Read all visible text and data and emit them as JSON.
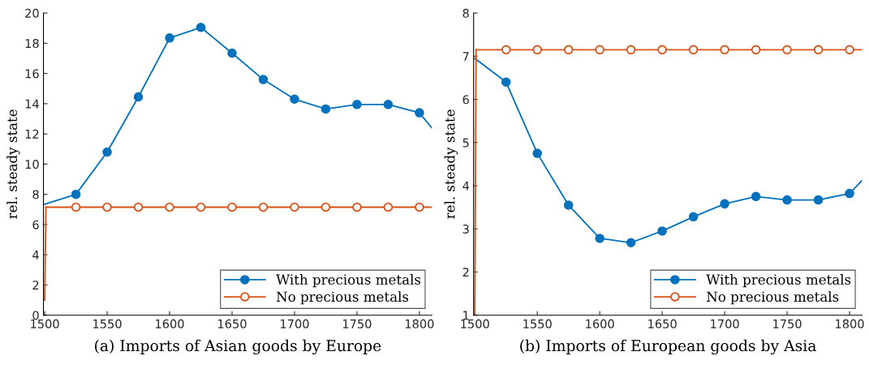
{
  "chart_data": [
    {
      "type": "line",
      "subtitle": "(a) Imports of Asian goods by Europe",
      "ylabel": "rel. steady state",
      "xlim": [
        1499,
        1810
      ],
      "xticks": [
        1500,
        1550,
        1600,
        1650,
        1700,
        1750,
        1800
      ],
      "ylim": [
        0,
        20
      ],
      "yticks": [
        0,
        2,
        4,
        6,
        8,
        10,
        12,
        14,
        16,
        18,
        20
      ],
      "grid": false,
      "legend": "bottom right",
      "series": [
        {
          "name": "With precious metals",
          "color": "#0072bd",
          "marker": "circle",
          "x": [
            1500,
            1525,
            1550,
            1575,
            1600,
            1625,
            1650,
            1675,
            1700,
            1725,
            1750,
            1775,
            1800,
            1810
          ],
          "values": [
            7.35,
            8.0,
            10.8,
            14.45,
            18.35,
            19.05,
            17.35,
            15.6,
            14.3,
            13.65,
            13.95,
            13.95,
            13.4,
            12.4
          ]
        },
        {
          "name": "No precious metals",
          "color": "#d95319",
          "marker": "circle",
          "x": [
            1501,
            1525,
            1550,
            1575,
            1600,
            1625,
            1650,
            1675,
            1700,
            1725,
            1750,
            1775,
            1800,
            1810
          ],
          "values": [
            7.15,
            7.15,
            7.15,
            7.15,
            7.15,
            7.15,
            7.15,
            7.15,
            7.15,
            7.15,
            7.15,
            7.15,
            7.15,
            7.15
          ]
        },
        {
          "color": "#d95319",
          "marker": "none",
          "x": [
            1500,
            1501
          ],
          "values": [
            1.0,
            7.15
          ]
        }
      ]
    },
    {
      "type": "line",
      "subtitle": "(b) Imports of European goods by Asia",
      "ylabel": "rel. steady state",
      "xlim": [
        1499,
        1810
      ],
      "xticks": [
        1500,
        1550,
        1600,
        1650,
        1700,
        1750,
        1800
      ],
      "ylim": [
        1,
        8
      ],
      "yticks": [
        1,
        2,
        3,
        4,
        5,
        6,
        7,
        8
      ],
      "grid": false,
      "legend": "bottom right",
      "series": [
        {
          "name": "With precious metals",
          "color": "#0072bd",
          "marker": "circle",
          "x": [
            1500,
            1525,
            1550,
            1575,
            1600,
            1625,
            1650,
            1675,
            1700,
            1725,
            1750,
            1775,
            1800,
            1810
          ],
          "values": [
            6.95,
            6.4,
            4.75,
            3.55,
            2.78,
            2.68,
            2.95,
            3.28,
            3.58,
            3.75,
            3.67,
            3.67,
            3.82,
            4.12
          ]
        },
        {
          "name": "No precious metals",
          "color": "#d95319",
          "marker": "circle",
          "x": [
            1501,
            1525,
            1550,
            1575,
            1600,
            1625,
            1650,
            1675,
            1700,
            1725,
            1750,
            1775,
            1800,
            1810
          ],
          "values": [
            7.15,
            7.15,
            7.15,
            7.15,
            7.15,
            7.15,
            7.15,
            7.15,
            7.15,
            7.15,
            7.15,
            7.15,
            7.15,
            7.15
          ]
        },
        {
          "color": "#d95319",
          "marker": "none",
          "x": [
            1500,
            1501
          ],
          "values": [
            1.0,
            7.15
          ]
        }
      ]
    }
  ]
}
